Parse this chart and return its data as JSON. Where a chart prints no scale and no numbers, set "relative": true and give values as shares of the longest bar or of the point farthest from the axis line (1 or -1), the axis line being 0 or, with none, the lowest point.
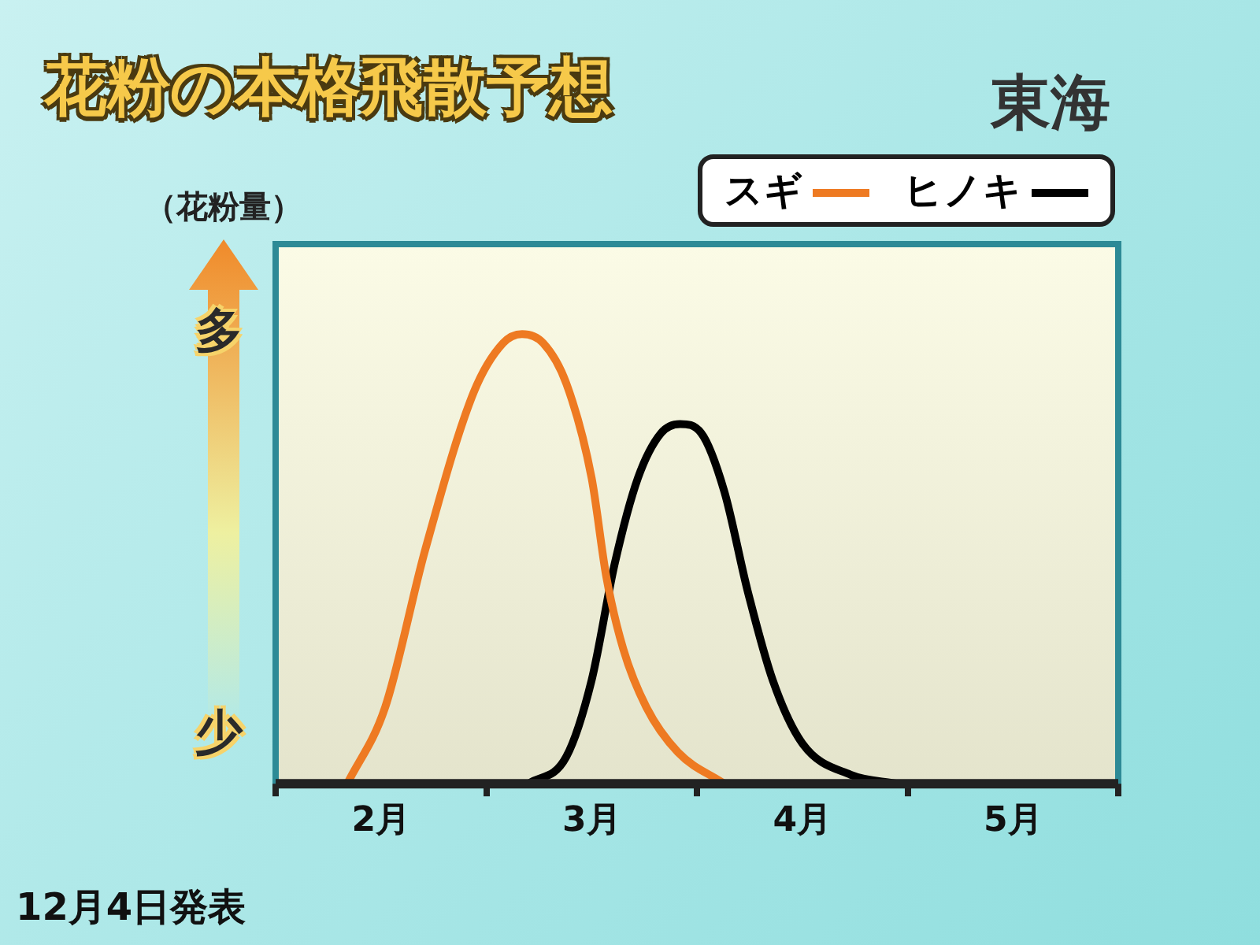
{
  "chart_data": {
    "type": "line",
    "title": "花粉の本格飛散予想",
    "subtitle": "東海",
    "ylabel": "（花粉量）",
    "relative": true,
    "legend": "top right",
    "marker": "none",
    "grid": false,
    "xlim": [
      2,
      6
    ],
    "xticks": [
      {
        "value": 2,
        "label": null
      },
      {
        "value": 2.5,
        "label": "2月"
      },
      {
        "value": 3,
        "label": null
      },
      {
        "value": 3.5,
        "label": "3月"
      },
      {
        "value": 4,
        "label": null
      },
      {
        "value": 4.5,
        "label": "4月"
      },
      {
        "value": 5,
        "label": null
      },
      {
        "value": 5.5,
        "label": "5月"
      },
      {
        "value": 6,
        "label": null
      }
    ],
    "annotations": [
      "多",
      "少",
      "12月4日発表"
    ],
    "series": [
      {
        "name": "スギ",
        "color": "#ee7a22",
        "x": [
          2.34,
          2.52,
          2.71,
          2.94,
          3.08,
          3.17,
          3.27,
          3.38,
          3.5,
          3.57,
          3.65,
          3.76,
          3.91,
          4.13
        ],
        "values": [
          0,
          0.17,
          0.52,
          0.87,
          0.98,
          1,
          0.98,
          0.89,
          0.68,
          0.46,
          0.3,
          0.17,
          0.07,
          0
        ]
      },
      {
        "name": "ヒノキ",
        "color": "#000000",
        "x": [
          3.2,
          3.38,
          3.5,
          3.61,
          3.72,
          3.83,
          3.92,
          4.02,
          4.13,
          4.24,
          4.36,
          4.5,
          4.73,
          4.95
        ],
        "values": [
          0,
          0.06,
          0.23,
          0.49,
          0.68,
          0.78,
          0.8,
          0.78,
          0.65,
          0.43,
          0.23,
          0.09,
          0.02,
          0
        ]
      }
    ]
  }
}
